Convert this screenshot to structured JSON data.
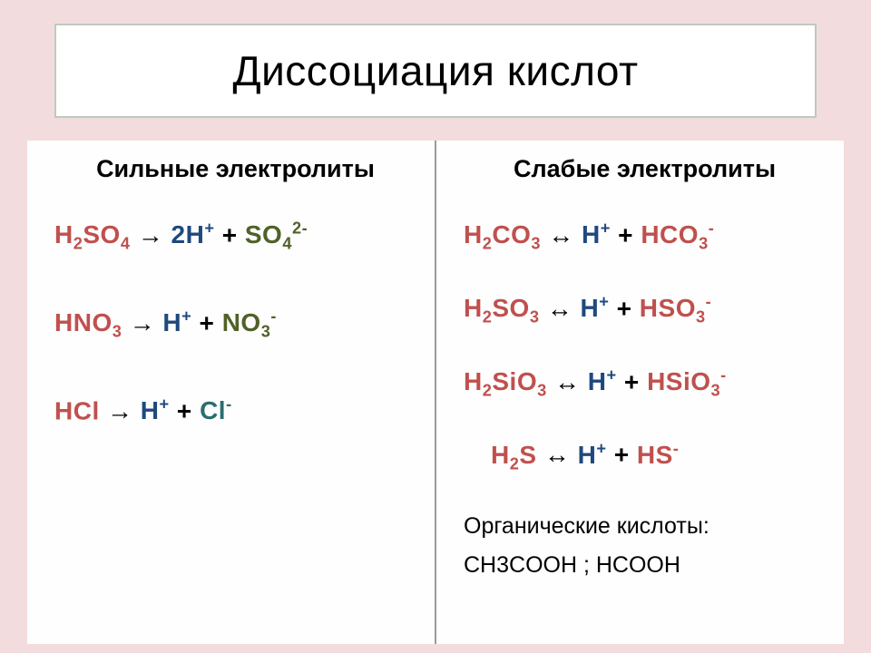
{
  "title": "Диссоциация  кислот",
  "left": {
    "heading": "Сильные  электролиты",
    "equations": [
      {
        "parts": [
          {
            "html": "H<sub>2</sub>SO<sub>4</sub>",
            "cls": "c-red"
          },
          {
            "html": " → ",
            "cls": "c-black"
          },
          {
            "html": "2H<sup>+</sup>",
            "cls": "c-blue"
          },
          {
            "html": " + ",
            "cls": "c-black"
          },
          {
            "html": "SO<sub>4</sub><sup>2-</sup>",
            "cls": "c-green"
          }
        ]
      },
      {
        "parts": [
          {
            "html": "HNO<sub>3</sub>",
            "cls": "c-red"
          },
          {
            "html": " → ",
            "cls": "c-black"
          },
          {
            "html": "H<sup>+</sup>",
            "cls": "c-blue"
          },
          {
            "html": "  +  ",
            "cls": "c-black"
          },
          {
            "html": "NO<sub>3</sub><sup>-</sup>",
            "cls": "c-green"
          }
        ]
      },
      {
        "parts": [
          {
            "html": "HCl",
            "cls": "c-red"
          },
          {
            "html": " → ",
            "cls": "c-black"
          },
          {
            "html": "H<sup>+</sup>",
            "cls": "c-blue"
          },
          {
            "html": " +  ",
            "cls": "c-black"
          },
          {
            "html": "Cl<sup>-</sup>",
            "cls": "c-teal"
          }
        ]
      }
    ]
  },
  "right": {
    "heading": "Слабые  электролиты",
    "equations": [
      {
        "parts": [
          {
            "html": "H<sub>2</sub>CO<sub>3</sub>",
            "cls": "c-red"
          },
          {
            "html": "  ↔  ",
            "cls": "c-black"
          },
          {
            "html": "H<sup>+</sup>",
            "cls": "c-blue"
          },
          {
            "html": " + ",
            "cls": "c-black"
          },
          {
            "html": "HCO<sub>3</sub><sup>-</sup>",
            "cls": "c-red"
          }
        ]
      },
      {
        "parts": [
          {
            "html": "H<sub>2</sub>SO<sub>3</sub>",
            "cls": "c-red"
          },
          {
            "html": "  ↔  ",
            "cls": "c-black"
          },
          {
            "html": "H<sup>+</sup>",
            "cls": "c-blue"
          },
          {
            "html": " + ",
            "cls": "c-black"
          },
          {
            "html": "HSO<sub>3</sub><sup>-</sup>",
            "cls": "c-red"
          }
        ]
      },
      {
        "parts": [
          {
            "html": "H<sub>2</sub>SiO<sub>3</sub>",
            "cls": "c-red"
          },
          {
            "html": " ↔  ",
            "cls": "c-black"
          },
          {
            "html": "H<sup>+</sup>",
            "cls": "c-blue"
          },
          {
            "html": " + ",
            "cls": "c-black"
          },
          {
            "html": "HSiO<sub>3</sub><sup>-</sup>",
            "cls": "c-red"
          }
        ]
      },
      {
        "indent": true,
        "parts": [
          {
            "html": "H<sub>2</sub>S",
            "cls": "c-red"
          },
          {
            "html": "  ↔  ",
            "cls": "c-black"
          },
          {
            "html": "H<sup>+</sup>",
            "cls": "c-blue"
          },
          {
            "html": "  + ",
            "cls": "c-black"
          },
          {
            "html": "HS<sup>-</sup>",
            "cls": "c-red"
          }
        ]
      }
    ],
    "note_line1": "Органические кислоты:",
    "note_line2": "CH3COOH ;  HCOOH"
  },
  "colors": {
    "slide_bg": "#f3dcdd",
    "panel_bg": "#fefefe",
    "title_border": "#bfcabf",
    "divider": "#9a9a9a",
    "red": "#c0504d",
    "blue": "#1f497d",
    "green": "#4f6228",
    "teal": "#2a6e6e",
    "black": "#000000"
  }
}
